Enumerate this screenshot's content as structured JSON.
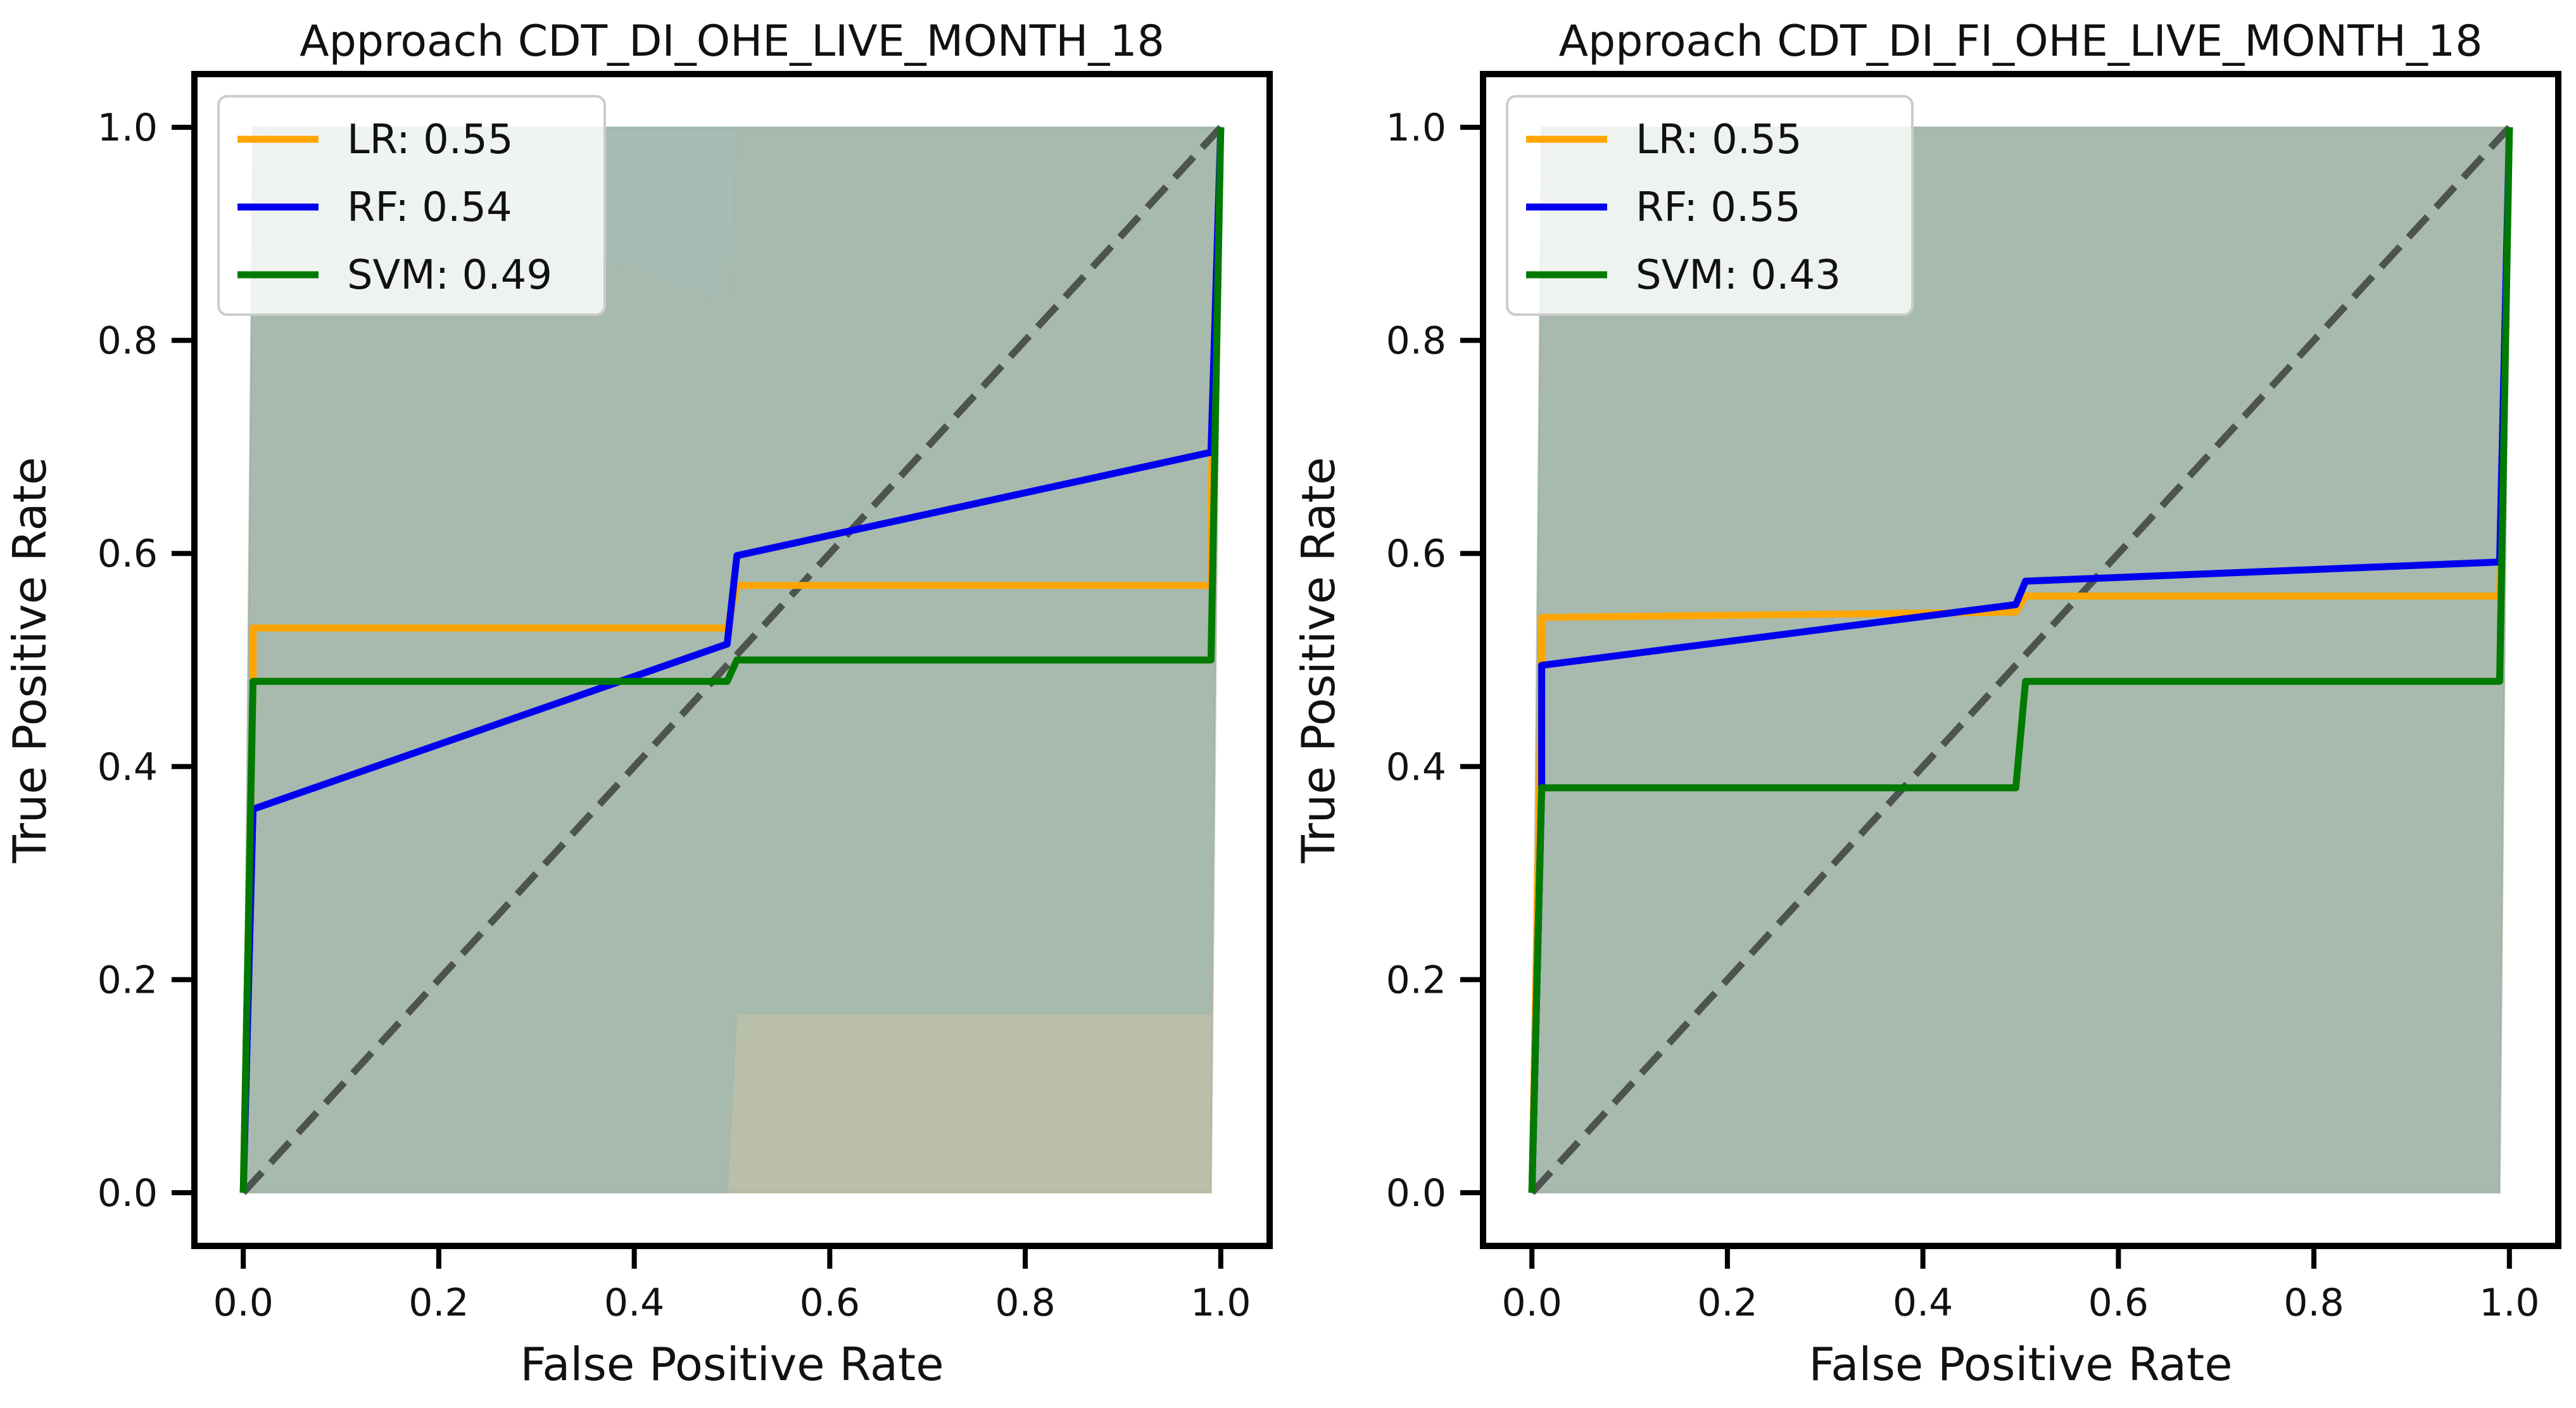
{
  "chart_data": [
    {
      "type": "line",
      "title": "Approach CDT_DI_OHE_LIVE_MONTH_18",
      "xlabel": "False Positive Rate",
      "ylabel": "True Positive Rate",
      "xlim": [
        -0.05,
        1.05
      ],
      "ylim": [
        -0.05,
        1.05
      ],
      "xticks": [
        "0.0",
        "0.2",
        "0.4",
        "0.6",
        "0.8",
        "1.0"
      ],
      "yticks": [
        "0.0",
        "0.2",
        "0.4",
        "0.6",
        "0.8",
        "1.0"
      ],
      "legend_position": "upper-left",
      "diagonal": {
        "x": [
          0,
          1
        ],
        "y": [
          0,
          1
        ],
        "color": "#4d5350",
        "style": "dashed"
      },
      "bands": [
        {
          "color": "#ffe4b5",
          "x": [
            0,
            0.01,
            0.495,
            0.505,
            0.99,
            1.0
          ],
          "lower": [
            0,
            0,
            0,
            0,
            0,
            1
          ],
          "upper": [
            0,
            1,
            0.835,
            1,
            1,
            1
          ]
        },
        {
          "color": "#add8e6",
          "x": [
            0,
            0.01,
            0.495,
            0.505,
            0.99,
            1.0
          ],
          "lower": [
            0,
            0,
            0,
            0.168,
            0.168,
            1
          ],
          "upper": [
            0,
            1,
            1,
            1,
            1,
            1
          ]
        },
        {
          "color": "#8fa18f",
          "x": [
            0,
            0.01,
            0.495,
            0.505,
            0.99,
            1.0
          ],
          "lower": [
            0,
            0,
            0,
            0,
            0,
            1
          ],
          "upper": [
            0,
            1,
            1,
            1,
            1,
            1
          ]
        }
      ],
      "series": [
        {
          "name": "LR: 0.55",
          "color": "#ffa500",
          "x": [
            0,
            0.01,
            0.01,
            0.495,
            0.495,
            0.505,
            0.99,
            0.99,
            1.0
          ],
          "y": [
            0,
            0.48,
            0.53,
            0.53,
            0.53,
            0.57,
            0.57,
            0.65,
            1.0
          ]
        },
        {
          "name": "RF: 0.54",
          "color": "#0000ee",
          "x": [
            0,
            0.01,
            0.495,
            0.505,
            0.99,
            1.0
          ],
          "y": [
            0,
            0.36,
            0.515,
            0.598,
            0.695,
            1.0
          ]
        },
        {
          "name": "SVM: 0.49",
          "color": "#007a00",
          "x": [
            0,
            0.01,
            0.495,
            0.505,
            0.99,
            1.0
          ],
          "y": [
            0,
            0.48,
            0.48,
            0.5,
            0.5,
            1.0
          ]
        }
      ]
    },
    {
      "type": "line",
      "title": "Approach CDT_DI_FI_OHE_LIVE_MONTH_18",
      "xlabel": "False Positive Rate",
      "ylabel": "True Positive Rate",
      "xlim": [
        -0.05,
        1.05
      ],
      "ylim": [
        -0.05,
        1.05
      ],
      "xticks": [
        "0.0",
        "0.2",
        "0.4",
        "0.6",
        "0.8",
        "1.0"
      ],
      "yticks": [
        "0.0",
        "0.2",
        "0.4",
        "0.6",
        "0.8",
        "1.0"
      ],
      "legend_position": "upper-left",
      "diagonal": {
        "x": [
          0,
          1
        ],
        "y": [
          0,
          1
        ],
        "color": "#4d5350",
        "style": "dashed"
      },
      "bands": [
        {
          "color": "#ffe4b5",
          "x": [
            0,
            0.01,
            0.99,
            1.0
          ],
          "lower": [
            0,
            0,
            0,
            1
          ],
          "upper": [
            0,
            1,
            1,
            1
          ]
        },
        {
          "color": "#add8e6",
          "x": [
            0,
            0.01,
            0.99,
            1.0
          ],
          "lower": [
            0,
            0,
            0,
            1
          ],
          "upper": [
            0,
            1,
            1,
            1
          ]
        },
        {
          "color": "#8fa18f",
          "x": [
            0,
            0.01,
            0.99,
            1.0
          ],
          "lower": [
            0,
            0,
            0,
            1
          ],
          "upper": [
            0,
            1,
            1,
            1
          ]
        }
      ],
      "series": [
        {
          "name": "LR: 0.55",
          "color": "#ffa500",
          "x": [
            0,
            0.01,
            0.01,
            0.495,
            0.505,
            0.99,
            1.0
          ],
          "y": [
            0,
            0.5,
            0.54,
            0.545,
            0.56,
            0.56,
            1.0
          ]
        },
        {
          "name": "RF: 0.55",
          "color": "#0000ee",
          "x": [
            0,
            0.01,
            0.01,
            0.495,
            0.505,
            0.99,
            1.0
          ],
          "y": [
            0,
            0.38,
            0.495,
            0.552,
            0.574,
            0.592,
            1.0
          ]
        },
        {
          "name": "SVM: 0.43",
          "color": "#007a00",
          "x": [
            0,
            0.01,
            0.495,
            0.505,
            0.99,
            1.0
          ],
          "y": [
            0,
            0.38,
            0.38,
            0.48,
            0.48,
            1.0
          ]
        }
      ]
    }
  ]
}
